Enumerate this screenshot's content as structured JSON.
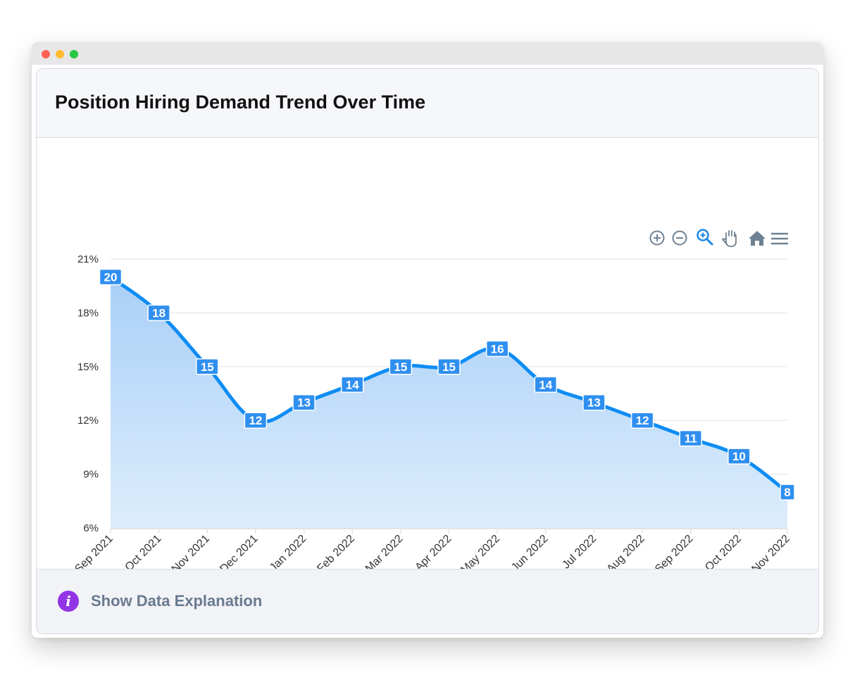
{
  "window": {
    "controls": [
      "close",
      "minimize",
      "maximize"
    ]
  },
  "card": {
    "title": "Position Hiring Demand Trend Over Time"
  },
  "toolbar": {
    "icons": [
      "zoom-in-icon",
      "zoom-out-icon",
      "selection-zoom-icon",
      "pan-icon",
      "reset-home-icon",
      "menu-icon"
    ],
    "active_color": "#1e88e5",
    "inactive_color": "#6e8192"
  },
  "footer": {
    "link_label": "Show Data Explanation",
    "icon": "info-icon",
    "icon_glyph": "i",
    "icon_color": "#9334e6"
  },
  "chart_data": {
    "type": "area",
    "title": "",
    "xlabel": "",
    "ylabel": "",
    "categories": [
      "Sep 2021",
      "Oct 2021",
      "Nov 2021",
      "Dec 2021",
      "Jan 2022",
      "Feb 2022",
      "Mar 2022",
      "Apr 2022",
      "May 2022",
      "Jun 2022",
      "Jul 2022",
      "Aug 2022",
      "Sep 2022",
      "Oct 2022",
      "Nov 2022"
    ],
    "series": [
      {
        "values": [
          20,
          18,
          15,
          12,
          13,
          14,
          15,
          15,
          16,
          14,
          13,
          12,
          11,
          10,
          8
        ]
      }
    ],
    "ylim": [
      6,
      21
    ],
    "yticks": [
      6,
      9,
      12,
      15,
      18,
      21
    ],
    "ytick_labels": [
      "6%",
      "9%",
      "12%",
      "15%",
      "18%",
      "21%"
    ],
    "grid": true,
    "legend": "none",
    "data_labels": true,
    "colors": {
      "line": "#0d8cf4",
      "fill_top": "#a9cff7",
      "fill_bottom": "#dcedfc",
      "label_bg": "#2f8ff0"
    }
  }
}
